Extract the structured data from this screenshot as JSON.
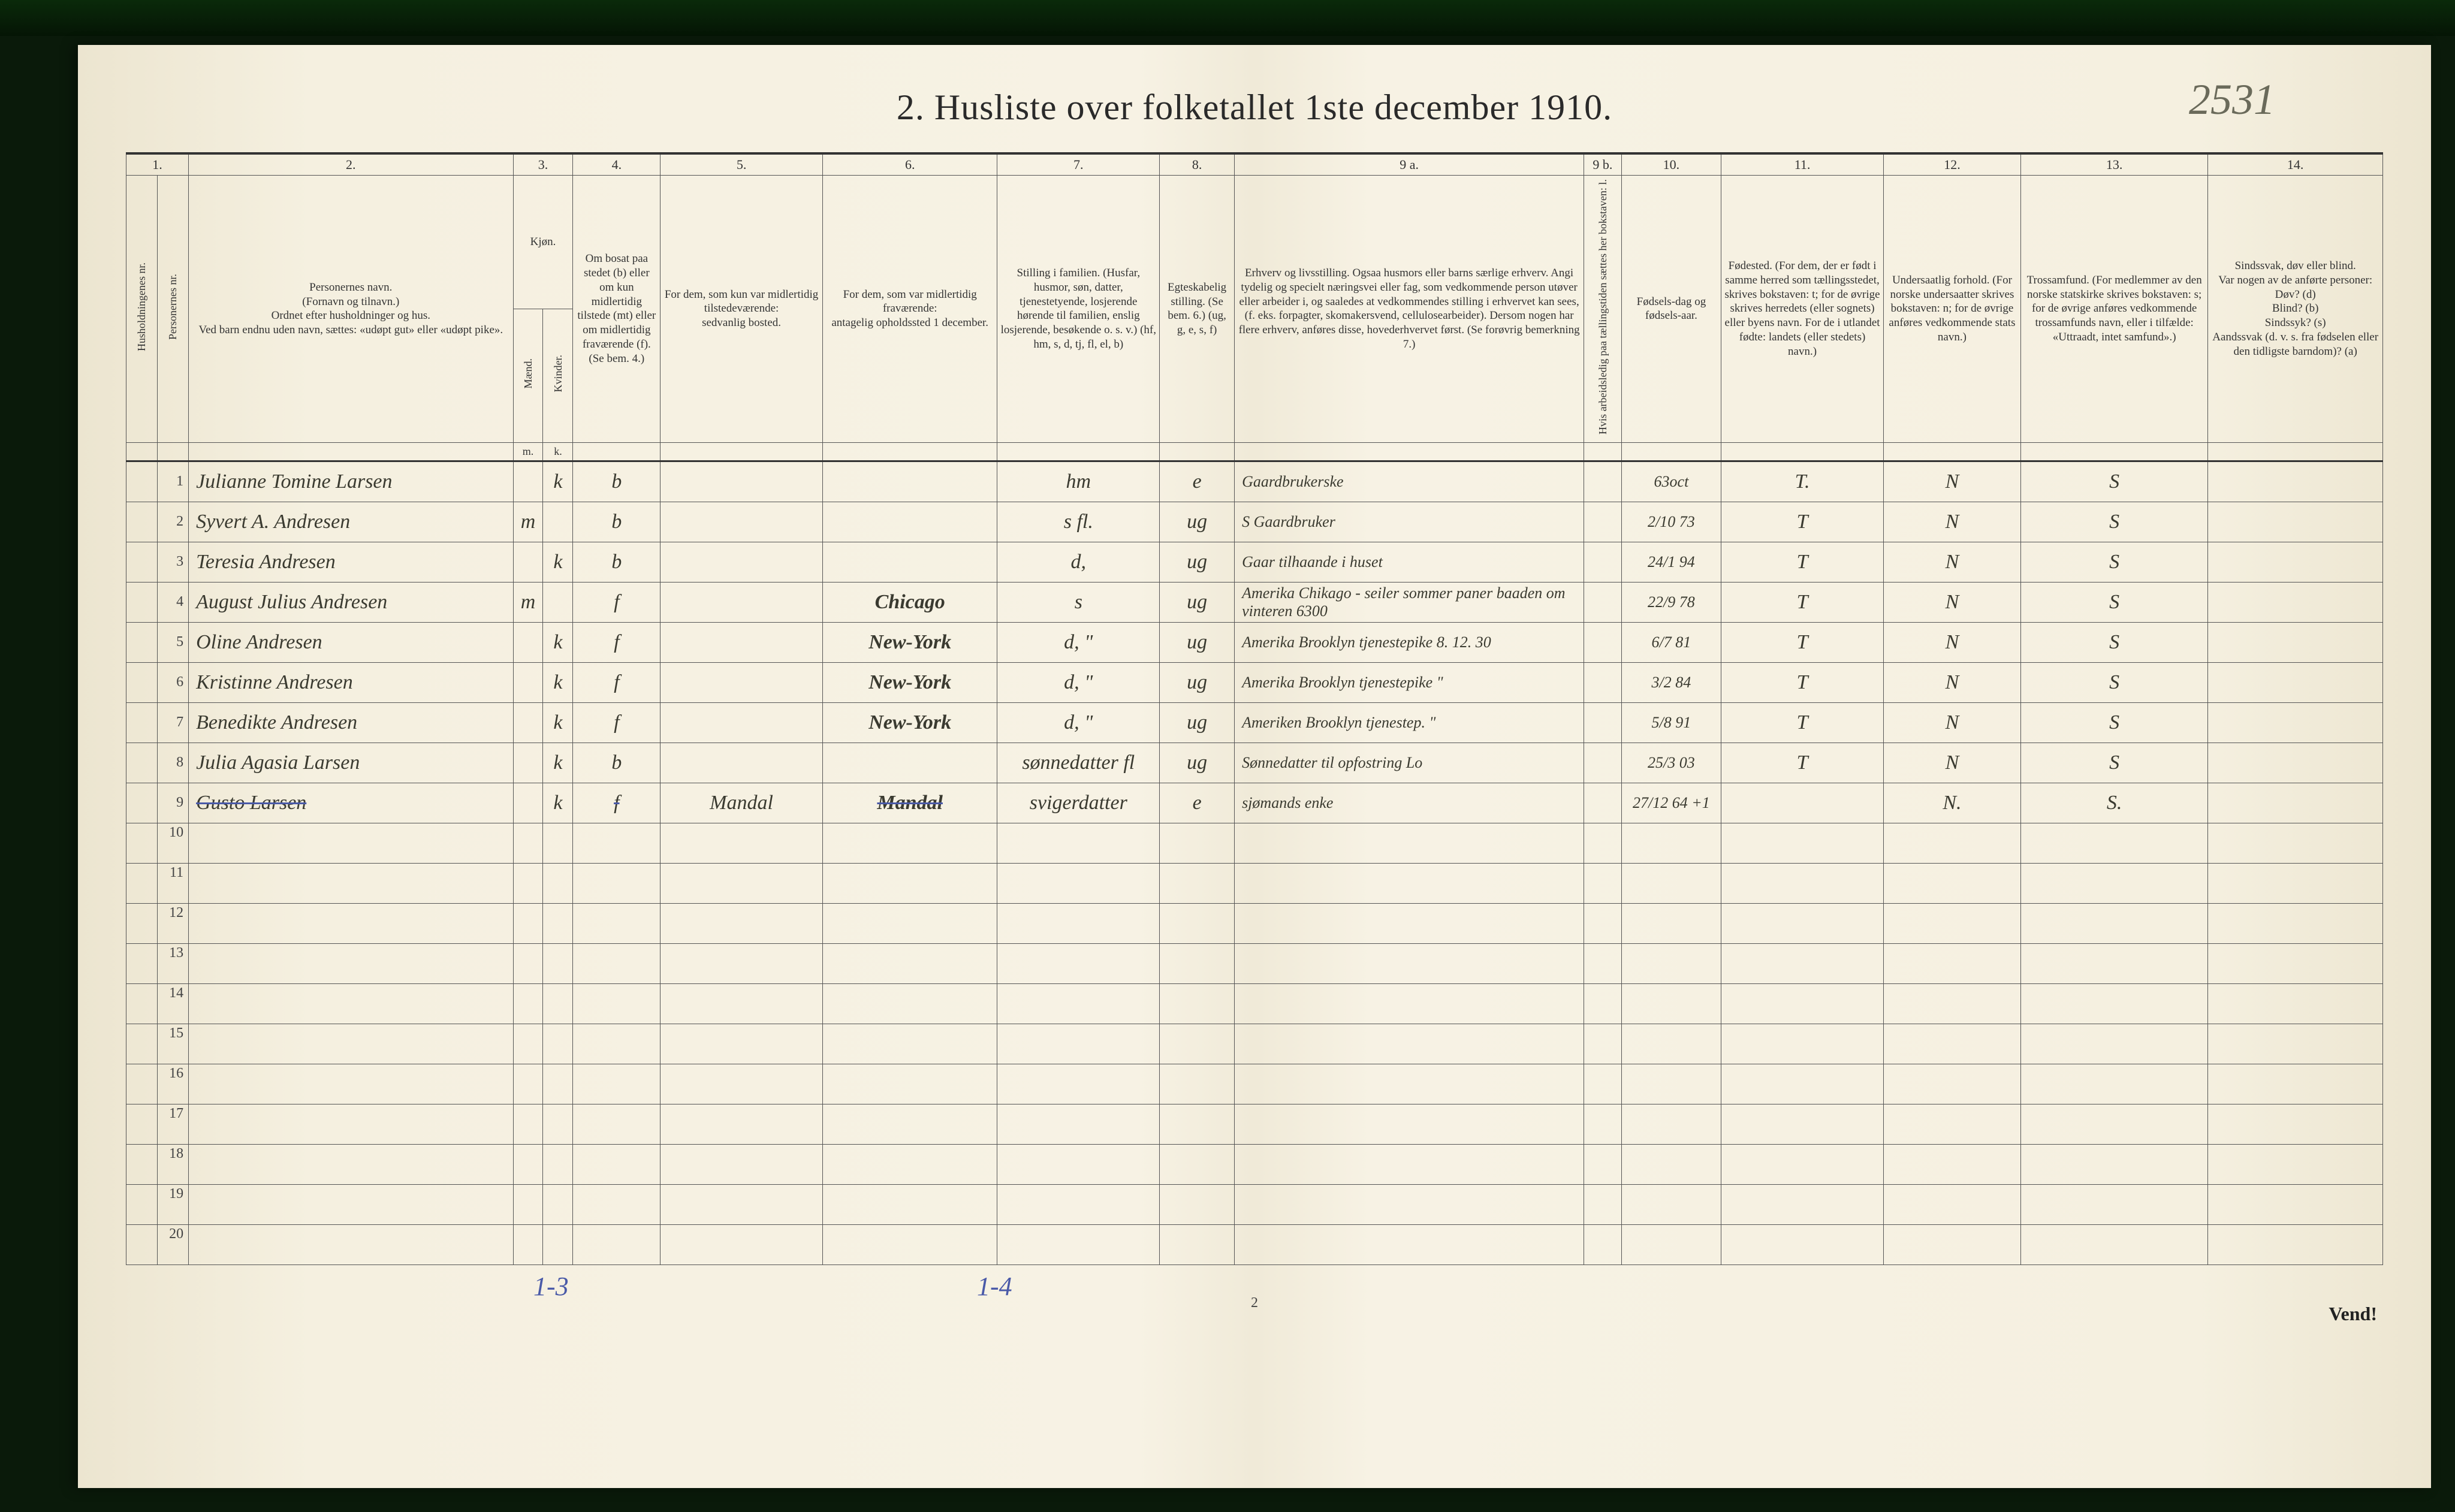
{
  "title": "2.  Husliste over folketallet 1ste december 1910.",
  "top_annotation": "2531",
  "columns": {
    "nums": [
      "1.",
      "2.",
      "3.",
      "4.",
      "5.",
      "6.",
      "7.",
      "8.",
      "9 a.",
      "9 b.",
      "10.",
      "11.",
      "12.",
      "13.",
      "14."
    ],
    "h1": "Husholdningenes nr.",
    "h1b": "Personernes nr.",
    "h2": "Personernes navn.\n(Fornavn og tilnavn.)\nOrdnet efter husholdninger og hus.\nVed barn endnu uden navn, sættes: «udøpt gut» eller «udøpt pike».",
    "h3": "Kjøn.",
    "h3m": "Mænd.",
    "h3k": "Kvinder.",
    "h4": "Om bosat paa stedet (b) eller om kun midlertidig tilstede (mt) eller om midlertidig fraværende (f). (Se bem. 4.)",
    "h5": "For dem, som kun var midlertidig tilstedeværende:\nsedvanlig bosted.",
    "h6": "For dem, som var midlertidig fraværende:\nantagelig opholdssted 1 december.",
    "h7": "Stilling i familien.\n(Husfar, husmor, søn, datter, tjenestetyende, losjerende hørende til familien, enslig losjerende, besøkende o. s. v.)\n(hf, hm, s, d, tj, fl, el, b)",
    "h8": "Egteskabelig stilling. (Se bem. 6.)\n(ug, g, e, s, f)",
    "h9a": "Erhverv og livsstilling.\nOgsaa husmors eller barns særlige erhverv. Angi tydelig og specielt næringsvei eller fag, som vedkommende person utøver eller arbeider i, og saaledes at vedkommendes stilling i erhvervet kan sees, (f. eks. forpagter, skomakersvend, cellulosearbeider). Dersom nogen har flere erhverv, anføres disse, hovederhvervet først. (Se forøvrig bemerkning 7.)",
    "h9b": "Hvis arbeidsledig paa tællingstiden sættes her bokstaven: l.",
    "h10": "Fødsels-dag og fødsels-aar.",
    "h11": "Fødested.\n(For dem, der er født i samme herred som tællingsstedet, skrives bokstaven: t; for de øvrige skrives herredets (eller sognets) eller byens navn. For de i utlandet fødte: landets (eller stedets) navn.)",
    "h12": "Undersaatlig forhold.\n(For norske undersaatter skrives bokstaven: n; for de øvrige anføres vedkommende stats navn.)",
    "h13": "Trossamfund.\n(For medlemmer av den norske statskirke skrives bokstaven: s; for de øvrige anføres vedkommende trossamfunds navn, eller i tilfælde: «Uttraadt, intet samfund».)",
    "h14": "Sindssvak, døv eller blind.\nVar nogen av de anførte personer:\nDøv? (d)\nBlind? (b)\nSindssyk? (s)\nAandssvak (d. v. s. fra fødselen eller den tidligste barndom)? (a)",
    "m": "m.",
    "k": "k."
  },
  "rows": [
    {
      "n": "1",
      "name": "Julianne Tomine Larsen",
      "m": "",
      "k": "k",
      "res": "b",
      "away": "",
      "absent": "",
      "fam": "hm",
      "civ": "e",
      "occ": "Gaardbrukerske",
      "dob": "63oct",
      "born": "T.",
      "nat": "N",
      "rel": "S",
      "dis": ""
    },
    {
      "n": "2",
      "name": "Syvert A. Andresen",
      "m": "m",
      "k": "",
      "res": "b",
      "away": "",
      "absent": "",
      "fam": "s fl.",
      "civ": "ug",
      "occ": "S  Gaardbruker",
      "dob": "2/10 73",
      "born": "T",
      "nat": "N",
      "rel": "S",
      "dis": ""
    },
    {
      "n": "3",
      "name": "Teresia   Andresen",
      "m": "",
      "k": "k",
      "res": "b",
      "away": "",
      "absent": "",
      "fam": "d,",
      "civ": "ug",
      "occ": "Gaar tilhaande i huset",
      "dob": "24/1 94",
      "born": "T",
      "nat": "N",
      "rel": "S",
      "dis": ""
    },
    {
      "n": "4",
      "name": "August Julius Andresen",
      "m": "m",
      "k": "",
      "res": "f",
      "away": "",
      "absent": "Chicago",
      "fam": "s",
      "civ": "ug",
      "occ": "Amerika Chikago - seiler sommer paner baaden om vinteren 6300",
      "dob": "22/9 78",
      "born": "T",
      "nat": "N",
      "rel": "S",
      "dis": ""
    },
    {
      "n": "5",
      "name": "Oline      Andresen",
      "m": "",
      "k": "k",
      "res": "f",
      "away": "",
      "absent": "New-York",
      "fam": "d,     \"",
      "civ": "ug",
      "occ": "Amerika Brooklyn tjenestepike   8. 12. 30",
      "dob": "6/7 81",
      "born": "T",
      "nat": "N",
      "rel": "S",
      "dis": ""
    },
    {
      "n": "6",
      "name": "Kristinne   Andresen",
      "m": "",
      "k": "k",
      "res": "f",
      "away": "",
      "absent": "New-York",
      "fam": "d,    \"",
      "civ": "ug",
      "occ": "Amerika Brooklyn tjenestepike      \"",
      "dob": "3/2 84",
      "born": "T",
      "nat": "N",
      "rel": "S",
      "dis": ""
    },
    {
      "n": "7",
      "name": "Benedikte   Andresen",
      "m": "",
      "k": "k",
      "res": "f",
      "away": "",
      "absent": "New-York",
      "fam": "d,    \"",
      "civ": "ug",
      "occ": "Ameriken Brooklyn tjenestep.        \"",
      "dob": "5/8 91",
      "born": "T",
      "nat": "N",
      "rel": "S",
      "dis": ""
    },
    {
      "n": "8",
      "name": "Julia Agasia Larsen",
      "m": "",
      "k": "k",
      "res": "b",
      "away": "",
      "absent": "",
      "fam": "sønnedatter fl",
      "civ": "ug",
      "occ": "Sønnedatter til opfostring   Lo",
      "dob": "25/3 03",
      "born": "T",
      "nat": "N",
      "rel": "S",
      "dis": ""
    },
    {
      "n": "9",
      "name": "Gusto        Larsen",
      "m": "",
      "k": "k",
      "res": "f",
      "away": "Mandal",
      "absent": "Mandal",
      "fam": "svigerdatter",
      "civ": "e",
      "occ": "sjømands enke",
      "dob": "27/12 64 +1",
      "born": "",
      "nat": "N.",
      "rel": "S.",
      "dis": "",
      "striked": true
    }
  ],
  "empty_rows": [
    "10",
    "11",
    "12",
    "13",
    "14",
    "15",
    "16",
    "17",
    "18",
    "19",
    "20"
  ],
  "footer": {
    "left": "1-3",
    "mid": "1-4",
    "pgnum": "2",
    "right": "Vend!"
  },
  "style": {
    "paper_bg": "#f5f0e0",
    "ink": "#3a3a30",
    "print": "#333333",
    "blue": "#4a5aa8",
    "border": "#555555"
  }
}
